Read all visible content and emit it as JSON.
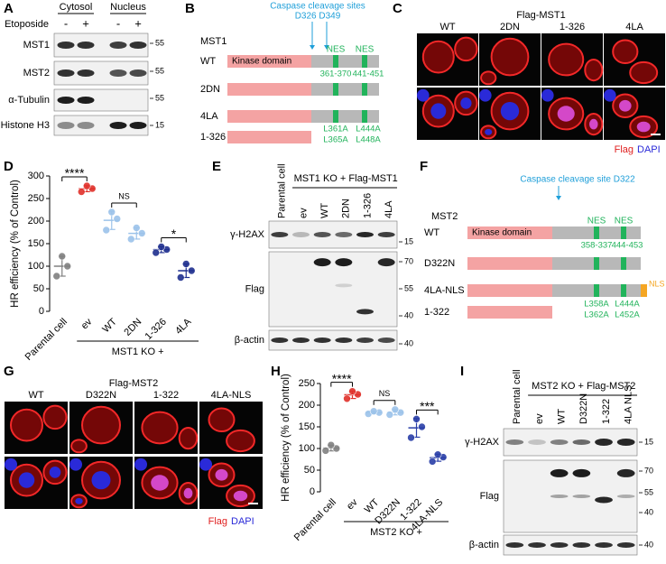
{
  "panel_labels": [
    "A",
    "B",
    "C",
    "D",
    "E",
    "F",
    "G",
    "H",
    "I"
  ],
  "blot_a": {
    "columns": [
      "Cytosol",
      "Nucleus"
    ],
    "treatment": "Etoposide",
    "lanes": [
      "-",
      "+",
      "-",
      "+"
    ],
    "rows": [
      "MST1",
      "MST2",
      "α-Tubulin",
      "Histone H3"
    ],
    "markers": [
      55,
      55,
      55,
      15
    ]
  },
  "construct_b": {
    "title": "Caspase cleavage sites",
    "sites": "D326 D349",
    "protein": "MST1",
    "constructs": [
      "WT",
      "2DN",
      "4LA",
      "1-326"
    ],
    "domain": "Kinase domain",
    "nes": [
      "NES",
      "NES"
    ],
    "ranges": [
      "361-370",
      "441-451"
    ],
    "mutations": [
      "L361A",
      "L365A",
      "L444A",
      "L448A"
    ]
  },
  "images_c": {
    "title": "Flag-MST1",
    "columns": [
      "WT",
      "2DN",
      "1-326",
      "4LA"
    ],
    "legend": [
      "Flag",
      "DAPI"
    ]
  },
  "blot_e": {
    "title": "MST1 KO + Flag-MST1",
    "lanes": [
      "Parental cell",
      "ev",
      "WT",
      "2DN",
      "1-326",
      "4LA"
    ],
    "rows": [
      "γ-H2AX",
      "Flag",
      "β-actin"
    ],
    "markers": [
      15,
      70,
      55,
      40,
      40
    ]
  },
  "construct_f": {
    "title": "Caspase cleavage site D322",
    "protein": "MST2",
    "constructs": [
      "WT",
      "D322N",
      "4LA-NLS",
      "1-322"
    ],
    "domain": "Kinase domain",
    "nes": [
      "NES",
      "NES"
    ],
    "ranges": [
      "358-337",
      "444-453"
    ],
    "nls": "NLS",
    "mutations": [
      "L358A",
      "L444A",
      "L362A",
      "L452A"
    ]
  },
  "images_g": {
    "title": "Flag-MST2",
    "columns": [
      "WT",
      "D322N",
      "1-322",
      "4LA-NLS"
    ],
    "legend": [
      "Flag",
      "DAPI"
    ]
  },
  "blot_i": {
    "title": "MST2 KO + Flag-MST2",
    "lanes": [
      "Parental cell",
      "ev",
      "WT",
      "D322N",
      "1-322",
      "4LA NLS"
    ],
    "rows": [
      "γ-H2AX",
      "Flag",
      "β-actin"
    ],
    "markers": [
      15,
      70,
      55,
      40,
      40
    ]
  },
  "chart_data": [
    {
      "type": "dot",
      "ylabel": "HR efficiency (% of Control)",
      "categories": [
        "Parental cell",
        "ev",
        "WT",
        "2DN",
        "1-326",
        "4LA"
      ],
      "group_label": "MST1 KO +",
      "ylim": [
        0,
        300
      ],
      "yticks": [
        0,
        50,
        100,
        150,
        200,
        250,
        300
      ],
      "colors": [
        "#808080",
        "#e0302a",
        "#9cc3ea",
        "#9cc3ea",
        "#1f2f8f",
        "#1f2f8f"
      ],
      "values": [
        [
          78,
          100,
          122
        ],
        [
          265,
          272,
          278
        ],
        [
          180,
          205,
          220
        ],
        [
          160,
          173,
          185
        ],
        [
          130,
          137,
          143
        ],
        [
          75,
          90,
          105
        ]
      ],
      "significance": [
        "****",
        "NS",
        "*"
      ]
    },
    {
      "type": "dot",
      "ylabel": "HR efficiency (% of Control)",
      "categories": [
        "Parental cell",
        "ev",
        "WT",
        "D322N",
        "1-322",
        "4LA-NLS"
      ],
      "group_label": "MST2 KO +",
      "ylim": [
        0,
        250
      ],
      "yticks": [
        0,
        50,
        100,
        150,
        200,
        250
      ],
      "colors": [
        "#808080",
        "#e0302a",
        "#9cc3ea",
        "#9cc3ea",
        "#2a3fa8",
        "#2a3fa8"
      ],
      "values": [
        [
          95,
          100,
          108
        ],
        [
          215,
          225,
          232
        ],
        [
          180,
          183,
          186
        ],
        [
          178,
          183,
          190
        ],
        [
          125,
          150,
          168
        ],
        [
          70,
          80,
          86
        ]
      ],
      "significance": [
        "****",
        "NS",
        "***"
      ]
    }
  ]
}
